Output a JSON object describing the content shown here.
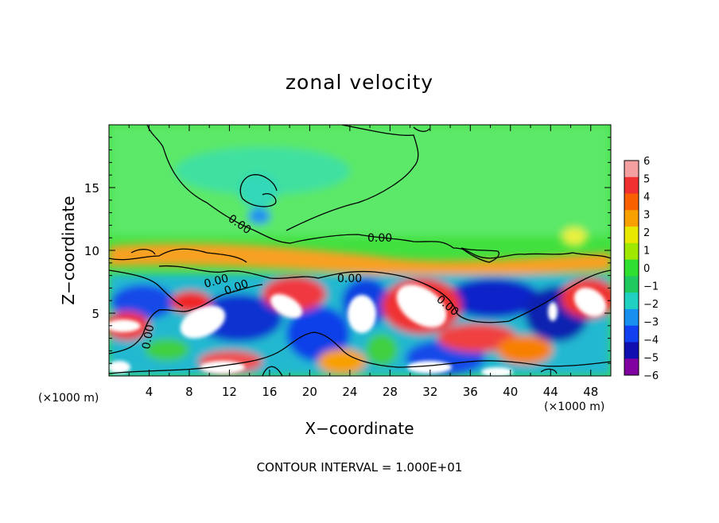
{
  "chart_data": {
    "type": "heatmap",
    "title": "zonal velocity",
    "xlabel": "X−coordinate",
    "ylabel": "Z−coordinate",
    "x_unit_left": "(×1000 m)",
    "x_unit_right": "(×1000 m)",
    "footer": "CONTOUR INTERVAL = 1.000E+01",
    "xlim": [
      0,
      50
    ],
    "ylim": [
      0,
      20
    ],
    "x_ticks": [
      "4",
      "8",
      "12",
      "16",
      "20",
      "24",
      "28",
      "32",
      "36",
      "40",
      "44",
      "48"
    ],
    "y_ticks": [
      "5",
      "10",
      "15"
    ],
    "colorbar": {
      "levels": [
        "6",
        "5",
        "4",
        "3",
        "2",
        "1",
        "0",
        "−1",
        "−2",
        "−3",
        "−4",
        "−5",
        "−6"
      ],
      "colors": [
        "#f4a0a0",
        "#f03030",
        "#f86000",
        "#f8a000",
        "#e8e800",
        "#a0e800",
        "#30e030",
        "#20c860",
        "#20d0c0",
        "#1890f0",
        "#1040f0",
        "#1010b0",
        "#8000a0"
      ]
    },
    "contour_labels": [
      "0.00",
      "0.00",
      "0.00",
      "0.00",
      "0.00",
      "0.00",
      "0.00"
    ],
    "colors": {
      "background_field": "#40e040",
      "upper_field": "#58e860",
      "contour_line": "#000000",
      "saturated": "#ffffff"
    }
  }
}
